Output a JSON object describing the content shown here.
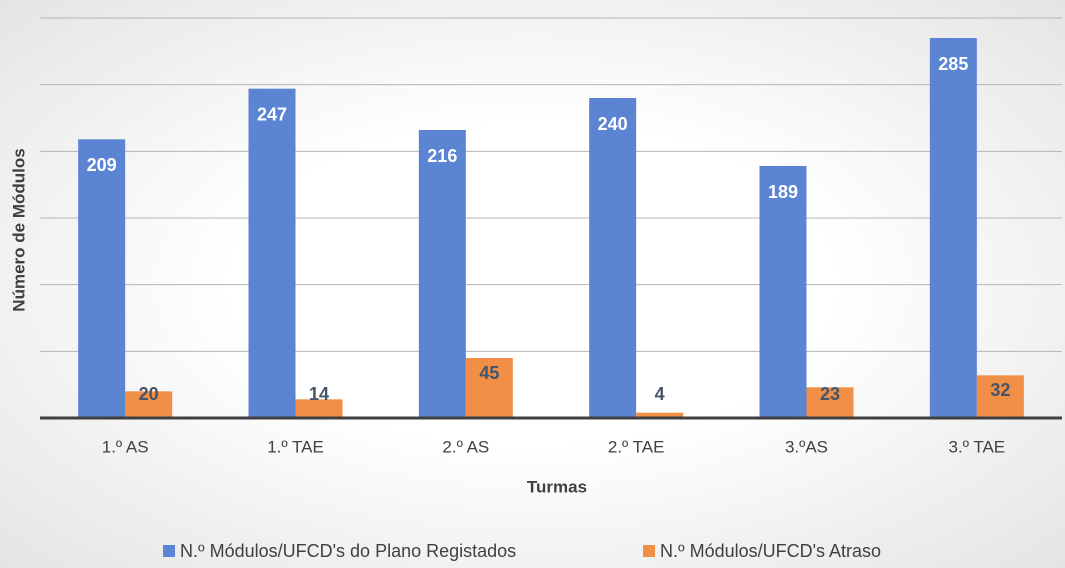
{
  "chart_data": {
    "type": "bar",
    "x_label": "Turmas",
    "y_label": "Número de Módulos",
    "categories": [
      "1.º AS",
      "1.º TAE",
      "2.º AS",
      "2.º TAE",
      "3.ºAS",
      "3.º TAE"
    ],
    "series": [
      {
        "name": "N.º Módulos/UFCD's do Plano Registados",
        "color": "#5b84d2",
        "values": [
          209,
          247,
          216,
          240,
          189,
          285
        ]
      },
      {
        "name": "N.º Módulos/UFCD's Atraso",
        "color": "#f08f45",
        "values": [
          20,
          14,
          45,
          4,
          23,
          32
        ]
      }
    ],
    "ylim": [
      0,
      300
    ],
    "yticks": [
      0,
      50,
      100,
      150,
      200,
      250,
      300
    ],
    "ytick_labels": false,
    "grid": true,
    "legend": "bottom"
  }
}
